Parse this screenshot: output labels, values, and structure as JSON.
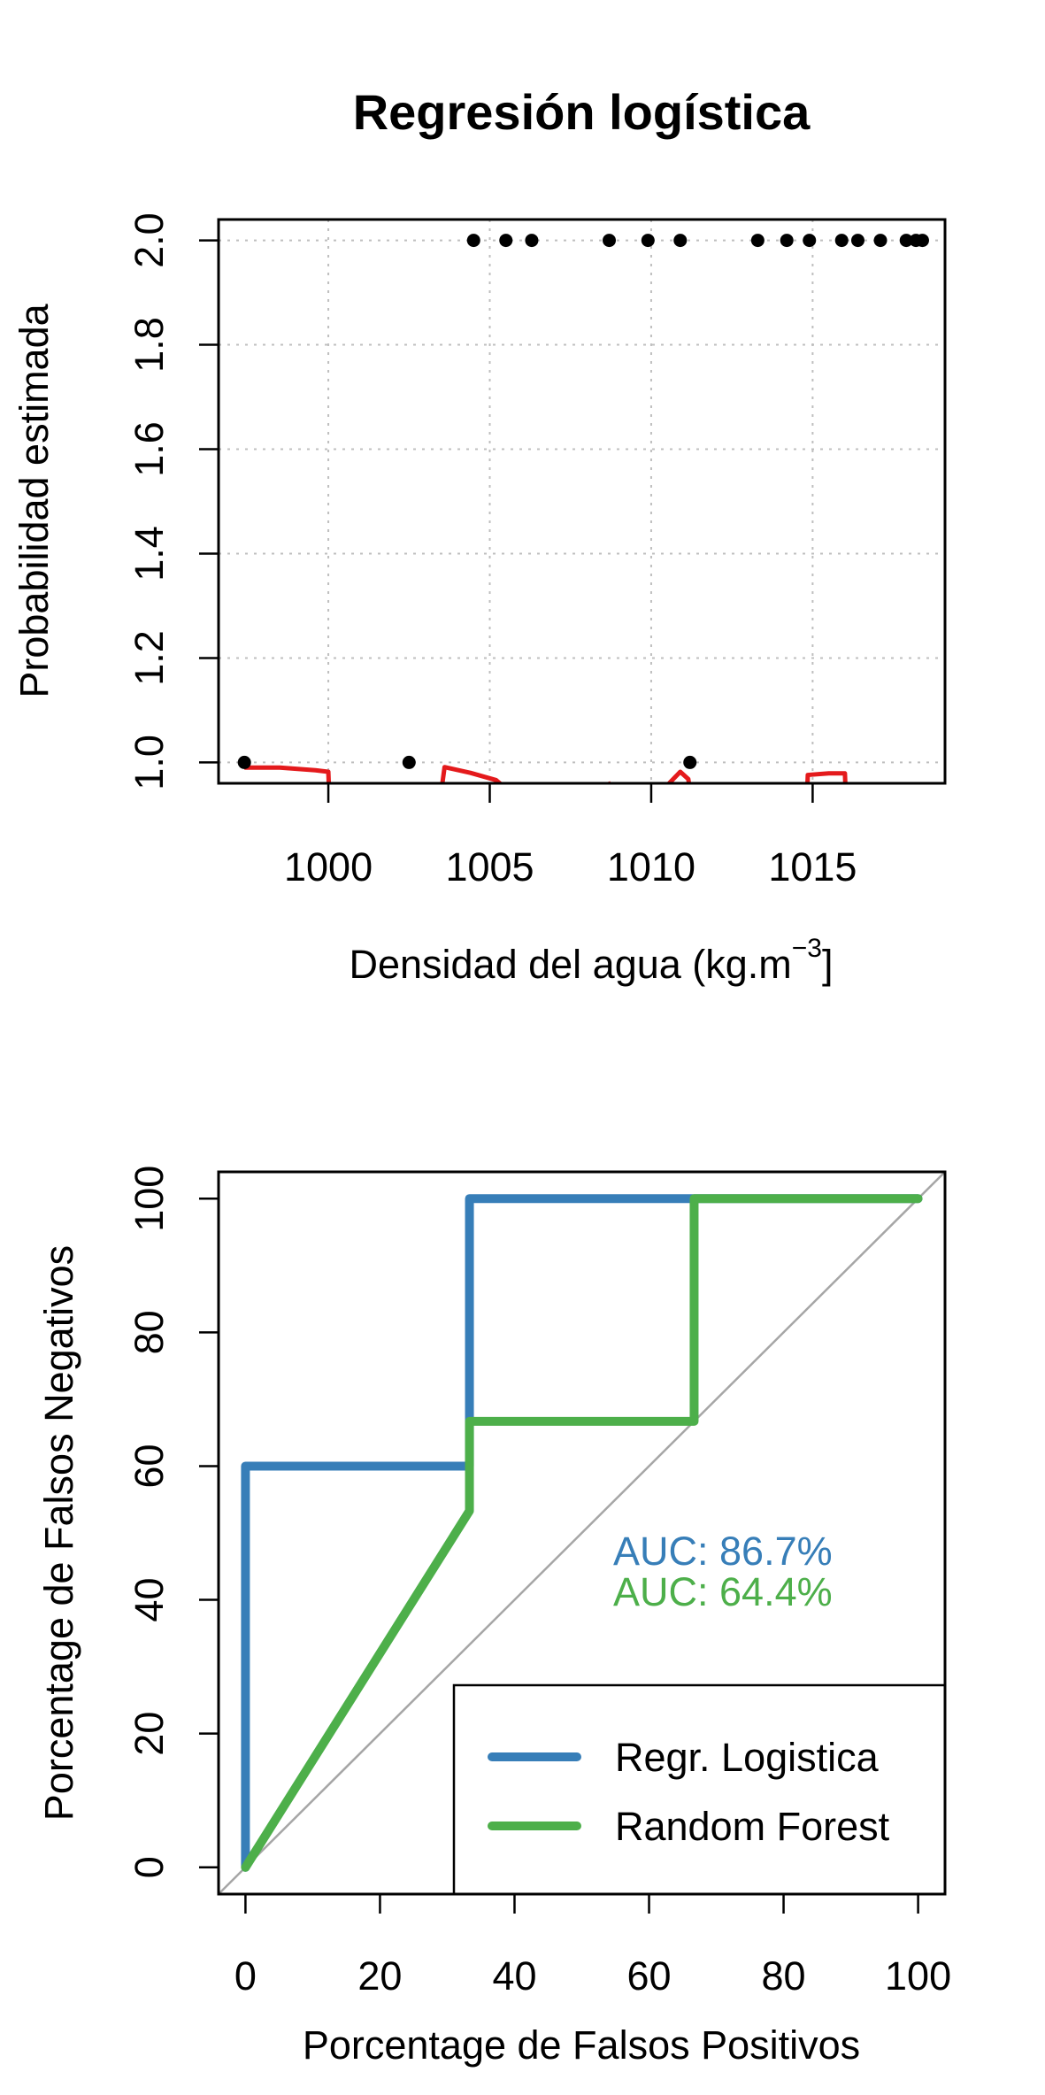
{
  "chart_data": [
    {
      "type": "scatter",
      "title": "Regresión logística",
      "xlabel": "Densidad del agua (kg.m",
      "xlabel_superscript": "−3",
      "xlabel_suffix": "]",
      "ylabel": "Probabilidad estimada",
      "xlim": [
        996.6,
        1019.1
      ],
      "ylim": [
        0.96,
        2.04
      ],
      "x_ticks": [
        1000,
        1005,
        1010,
        1015
      ],
      "y_ticks": [
        1.0,
        1.2,
        1.4,
        1.6,
        1.8,
        2.0
      ],
      "y_tick_labels": [
        "1.0",
        "1.2",
        "1.4",
        "1.6",
        "1.8",
        "2.0"
      ],
      "grid": true,
      "point_color": "#000000",
      "points": [
        {
          "x": 997.4,
          "y": 1
        },
        {
          "x": 1002.5,
          "y": 1
        },
        {
          "x": 1011.2,
          "y": 1
        },
        {
          "x": 1004.5,
          "y": 2
        },
        {
          "x": 1005.5,
          "y": 2
        },
        {
          "x": 1006.3,
          "y": 2
        },
        {
          "x": 1008.7,
          "y": 2
        },
        {
          "x": 1009.9,
          "y": 2
        },
        {
          "x": 1010.9,
          "y": 2
        },
        {
          "x": 1013.3,
          "y": 2
        },
        {
          "x": 1014.2,
          "y": 2
        },
        {
          "x": 1014.9,
          "y": 2
        },
        {
          "x": 1015.9,
          "y": 2
        },
        {
          "x": 1016.4,
          "y": 2
        },
        {
          "x": 1017.1,
          "y": 2
        },
        {
          "x": 1017.9,
          "y": 2
        },
        {
          "x": 1018.2,
          "y": 2
        },
        {
          "x": 1018.4,
          "y": 2
        }
      ],
      "fitted_curve": {
        "color": "#e41a1c",
        "segments": [
          [
            [
              997.4,
              0.99
            ],
            [
              998.5,
              0.99
            ],
            [
              999.6,
              0.985
            ],
            [
              1000.0,
              0.982
            ],
            [
              1000.05,
              0.9
            ]
          ],
          [
            [
              1003.4,
              0.9
            ],
            [
              1003.6,
              0.991
            ],
            [
              1004.4,
              0.98
            ],
            [
              1005.2,
              0.966
            ],
            [
              1005.5,
              0.95
            ]
          ],
          [
            [
              1008.5,
              0.955
            ],
            [
              1008.75,
              0.96
            ]
          ],
          [
            [
              1010.4,
              0.95
            ],
            [
              1010.9,
              0.982
            ],
            [
              1011.15,
              0.968
            ],
            [
              1011.3,
              0.9
            ]
          ],
          [
            [
              1014.8,
              0.9
            ],
            [
              1014.85,
              0.976
            ],
            [
              1015.5,
              0.979
            ],
            [
              1016.0,
              0.979
            ],
            [
              1016.05,
              0.9
            ]
          ]
        ]
      }
    },
    {
      "type": "line",
      "xlabel": "Porcentage de Falsos Positivos",
      "ylabel": "Porcentage de Falsos Negativos",
      "xlim": [
        -4,
        104
      ],
      "ylim": [
        -4,
        104
      ],
      "x_ticks": [
        0,
        20,
        40,
        60,
        80,
        100
      ],
      "y_ticks": [
        0,
        20,
        40,
        60,
        80,
        100
      ],
      "diagonal_color": "#a6a6a6",
      "series": [
        {
          "name": "Regr. Logistica",
          "color": "#377eb8",
          "auc_label": "AUC: 86.7%",
          "x": [
            0,
            0,
            33.3,
            33.3,
            100
          ],
          "y": [
            0,
            60,
            60,
            100,
            100
          ]
        },
        {
          "name": "Random Forest",
          "color": "#4daf4a",
          "auc_label": "AUC: 64.4%",
          "x": [
            0,
            33.3,
            33.3,
            66.7,
            66.7,
            100
          ],
          "y": [
            0,
            53.3,
            66.7,
            66.7,
            100,
            100
          ]
        }
      ],
      "legend": "bottom-right"
    }
  ]
}
